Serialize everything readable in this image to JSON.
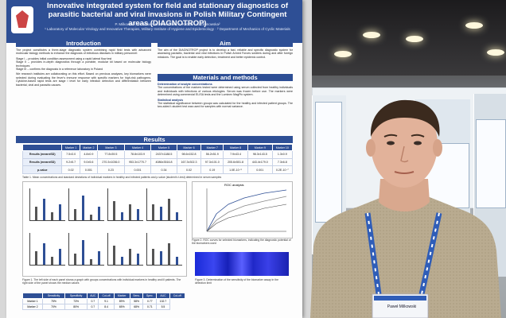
{
  "poster": {
    "title": "Innovative integrated system for field and stationary diagnostics of parasitic bacterial and viral invasions in Polish Military Contingent areas (DIAGNOTROP)",
    "authors": "P. Milkowski¹, D. Walas¹, K. Pawliczak¹, J. Kubiak¹, A. Zdunowska²",
    "affiliations": "¹ Laboratory of Molecular Virology and Innovative Therapies, Military Institute of Hygiene and Epidemiology · ² Department of Mechanics of Cyclic Materials",
    "sections": {
      "introduction": "Introduction",
      "aim": "Aim",
      "materials": "Materials and methods",
      "results": "Results"
    },
    "intro_text": "The project constitutes a three-stage diagnostic system combining rapid field tests with advanced molecular biology methods to enhance the diagnosis of infectious diseases in military personnel:",
    "stages": [
      "Stage I – provides initial condition assessment using a rapid lateral flow test",
      "Stage II – provides in-depth diagnostics through a portable, modular kit based on molecular biology techniques",
      "Stage III – confirms the diagnosis in a reference laboratory in Poland"
    ],
    "intro_text_2": "We research institutes are collaborating on this effort. Based on previous analyses, key biomarkers were selected during evaluating the fever's immune response with specific markers for high-risk pathogens. Cytokine-based rapid tests are stage I level for early infection detection and differentiation between bacterial, viral and parasitic causes.",
    "aim_text": "The aim of the DIAGNOTROP project is to develop a fast, reliable and specific diagnostic system for assessing parasitic, bacterial and viral infections in Polish Armed Forces soldiers during and after foreign missions. The goal is to enable early detection, treatment and better epidemic control.",
    "methods_title": "Determination of analyte concentrations",
    "methods_text": "The concentrations of the markers tested were determined using serum collected from healthy individuals and individuals with infections of various etiologies. Serum was frozen before use. The markers were determined using commercial ELISA tests and the Luminex MagPix system.",
    "stats_title": "Statistical analysis",
    "stats_text": "The statistical significance between groups was calculated for the healthy and infected patient groups. The two-sided t-student test was used for samples with normal variance.",
    "table_headers": [
      "",
      "Marker 1",
      "Marker 2",
      "Marker 3",
      "Marker 4",
      "Marker 5",
      "Marker 6",
      "Marker 7",
      "Marker 8",
      "Marker 9",
      "Marker 10"
    ],
    "table_rows": [
      [
        "Results (mean±SD)",
        "7.5±3.0",
        "4.8±0.9",
        "77.8±39.5",
        "78.8±103.9",
        "2437±1188.5",
        "98.6±152.8",
        "56.2±51.9",
        "7.9±43.4",
        "98.3±143.5",
        "1.3±0.9"
      ],
      [
        "Results (mean±SD)",
        "9.2±5.7",
        "9.0±5.6",
        "270.3±1036.0",
        "953.3±1770.7",
        "4086±3516.8",
        "167.3±302.3",
        "97.3±101.0",
        "205.6±501.8",
        "443.4±179.0",
        "7.3±6.8"
      ],
      [
        "p-value",
        "0.02",
        "0.001",
        "0.23",
        "0.001",
        "0.34",
        "0.02",
        "0.19",
        "1.0E-10⁻⁶",
        "0.001",
        "0.2E-10⁻⁷"
      ]
    ],
    "table_caption": "Table 1. Mean concentrations and standard deviations of individual markers in healthy and infected patients and p-value (student's t-test) determined in serum samples",
    "figure1_caption": "Figure 1. The left side of each panel shows a graph with groups concentrations with individual markers in healthy and ill patients. The right side of the panel shows the median values",
    "figure2_caption": "Figure 2. ROC curves for selected biomarkers, indicating the diagnostic potential of the biomarkers used",
    "figure3_caption": "Figure 3. Determination of the sensitivity of the biomarker assay in the detection limit",
    "line_chart_title": "ROC analysis",
    "bottom_headers": [
      "",
      "Sensitivity",
      "Specificity",
      "AUC",
      "Cut-off",
      "Marker",
      "Sens.",
      "Spec.",
      "AUC",
      "Cut-off"
    ],
    "bottom_rows": [
      [
        "Marker 1",
        "75%",
        "73%",
        "0.7",
        "9.1",
        "89%",
        "58%",
        "0.77",
        "132.7"
      ],
      [
        "Marker 2",
        "70%",
        "80%",
        "0.7",
        "8.4",
        "65%",
        "68%",
        "0.71",
        "5.5"
      ]
    ]
  },
  "badge": {
    "name": "Paweł Milkowski"
  },
  "colors": {
    "poster_blue": "#2e4f95",
    "shirt": "#b8a98d",
    "lanyard": "#2f5db8"
  }
}
